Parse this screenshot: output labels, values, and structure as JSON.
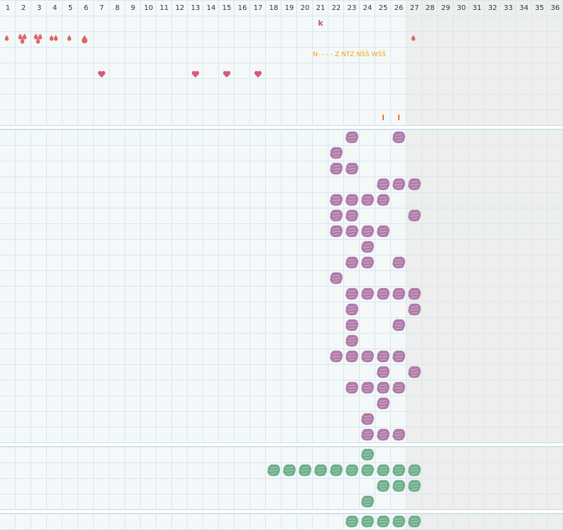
{
  "header": {
    "days": [
      "1",
      "2",
      "3",
      "4",
      "5",
      "6",
      "7",
      "8",
      "9",
      "10",
      "11",
      "12",
      "13",
      "14",
      "15",
      "16",
      "17",
      "18",
      "19",
      "20",
      "21",
      "22",
      "23",
      "24",
      "25",
      "26",
      "27",
      "28",
      "29",
      "30",
      "31",
      "32",
      "33",
      "34",
      "35",
      "36"
    ]
  },
  "colors": {
    "grid_line": "#d6e8ec",
    "cell_bg": "#f4f8f9",
    "future_bg": "#eeeeee",
    "drop": "#e06666",
    "heart": "#d9597a",
    "letter_k": "#b0589a",
    "note_text": "#f0a500",
    "tick": "#f07830",
    "purple_blob": "#b07aa8",
    "green_blob": "#6fae8a"
  },
  "top_panel": {
    "row1_letter": "k",
    "row3_note": "N- - - - Z NTZ NŚŚ WŚŚ"
  }
}
